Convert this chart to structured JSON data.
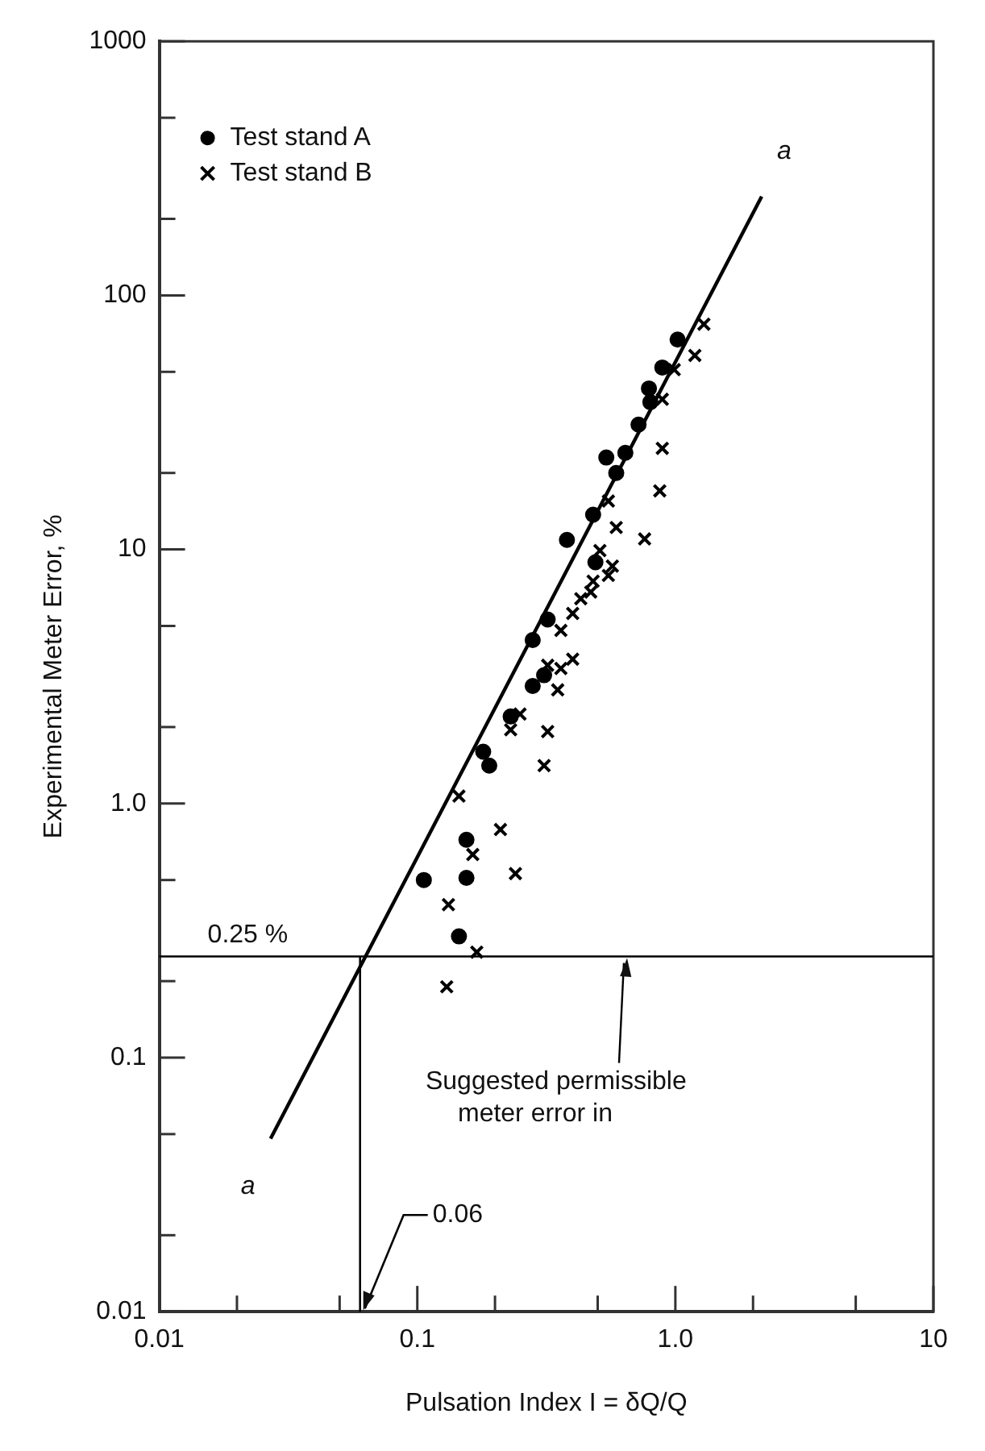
{
  "chart_data": {
    "type": "scatter",
    "xlabel": "Pulsation Index I = δQ/Q",
    "ylabel": "Experimental Meter Error, %",
    "log": "xy",
    "grid": false,
    "legend": "top left",
    "xlim": [
      0.01,
      10
    ],
    "ylim": [
      0.01,
      1000
    ],
    "xticks": [
      0.01,
      {
        "value": 0.02,
        "label": null
      },
      {
        "value": 0.05,
        "label": null
      },
      0.1,
      {
        "value": 0.2,
        "label": null
      },
      {
        "value": 0.5,
        "label": null
      },
      {
        "value": 1,
        "label": "1.0"
      },
      {
        "value": 2,
        "label": null
      },
      {
        "value": 5,
        "label": null
      },
      10
    ],
    "yticks": [
      0.01,
      {
        "value": 0.02,
        "label": null
      },
      {
        "value": 0.05,
        "label": null
      },
      0.1,
      {
        "value": 0.2,
        "label": null
      },
      {
        "value": 0.5,
        "label": null
      },
      {
        "value": 1,
        "label": "1.0"
      },
      {
        "value": 2,
        "label": null
      },
      {
        "value": 5,
        "label": null
      },
      10,
      {
        "value": 20,
        "label": null
      },
      {
        "value": 50,
        "label": null
      },
      100,
      {
        "value": 200,
        "label": null
      },
      {
        "value": 500,
        "label": null
      },
      1000
    ],
    "series": [
      {
        "name": "Test stand A",
        "marker": "circle",
        "color": "#000000",
        "x": [
          1.02,
          0.89,
          0.79,
          0.8,
          0.72,
          0.54,
          0.64,
          0.59,
          0.48,
          0.38,
          0.49,
          0.32,
          0.28,
          0.28,
          0.31,
          0.23,
          0.18,
          0.19,
          0.155,
          0.106,
          0.155,
          0.145
        ],
        "values": [
          67,
          52,
          43,
          38,
          31,
          23,
          24,
          20,
          13.7,
          10.9,
          8.9,
          5.3,
          4.4,
          2.9,
          3.2,
          2.2,
          1.6,
          1.41,
          0.72,
          0.5,
          0.51,
          0.3
        ]
      },
      {
        "name": "Test stand B",
        "marker": "cross",
        "color": "#000000",
        "x": [
          1.29,
          1.19,
          0.99,
          0.89,
          0.89,
          0.87,
          0.76,
          0.55,
          0.59,
          0.51,
          0.57,
          0.55,
          0.48,
          0.47,
          0.43,
          0.4,
          0.36,
          0.32,
          0.4,
          0.36,
          0.35,
          0.25,
          0.23,
          0.32,
          0.31,
          0.145,
          0.21,
          0.164,
          0.24,
          0.132,
          0.17,
          0.13
        ],
        "values": [
          77,
          58,
          51,
          39,
          25,
          17,
          11,
          15.5,
          12.2,
          9.9,
          8.6,
          7.9,
          7.5,
          6.8,
          6.4,
          5.6,
          4.8,
          3.5,
          3.7,
          3.4,
          2.8,
          2.25,
          1.95,
          1.92,
          1.41,
          1.07,
          0.79,
          0.63,
          0.53,
          0.4,
          0.26,
          0.19
        ]
      },
      {
        "type": "line",
        "marker": "none",
        "line_style": "solid",
        "color": "#000000",
        "x": [
          0.027,
          2.16
        ],
        "values": [
          0.048,
          245
        ]
      }
    ],
    "ref_lines": [
      {
        "axis": "y",
        "value": 0.25,
        "label": "0.25 %",
        "color": "#000000"
      },
      {
        "axis": "x",
        "value": 0.06,
        "label": "0.06",
        "color": "#000000"
      }
    ],
    "annotations": [
      "a",
      "a",
      {
        "text": "Suggested permissible meter error in",
        "x": 0.65,
        "y": 0.25
      }
    ]
  }
}
